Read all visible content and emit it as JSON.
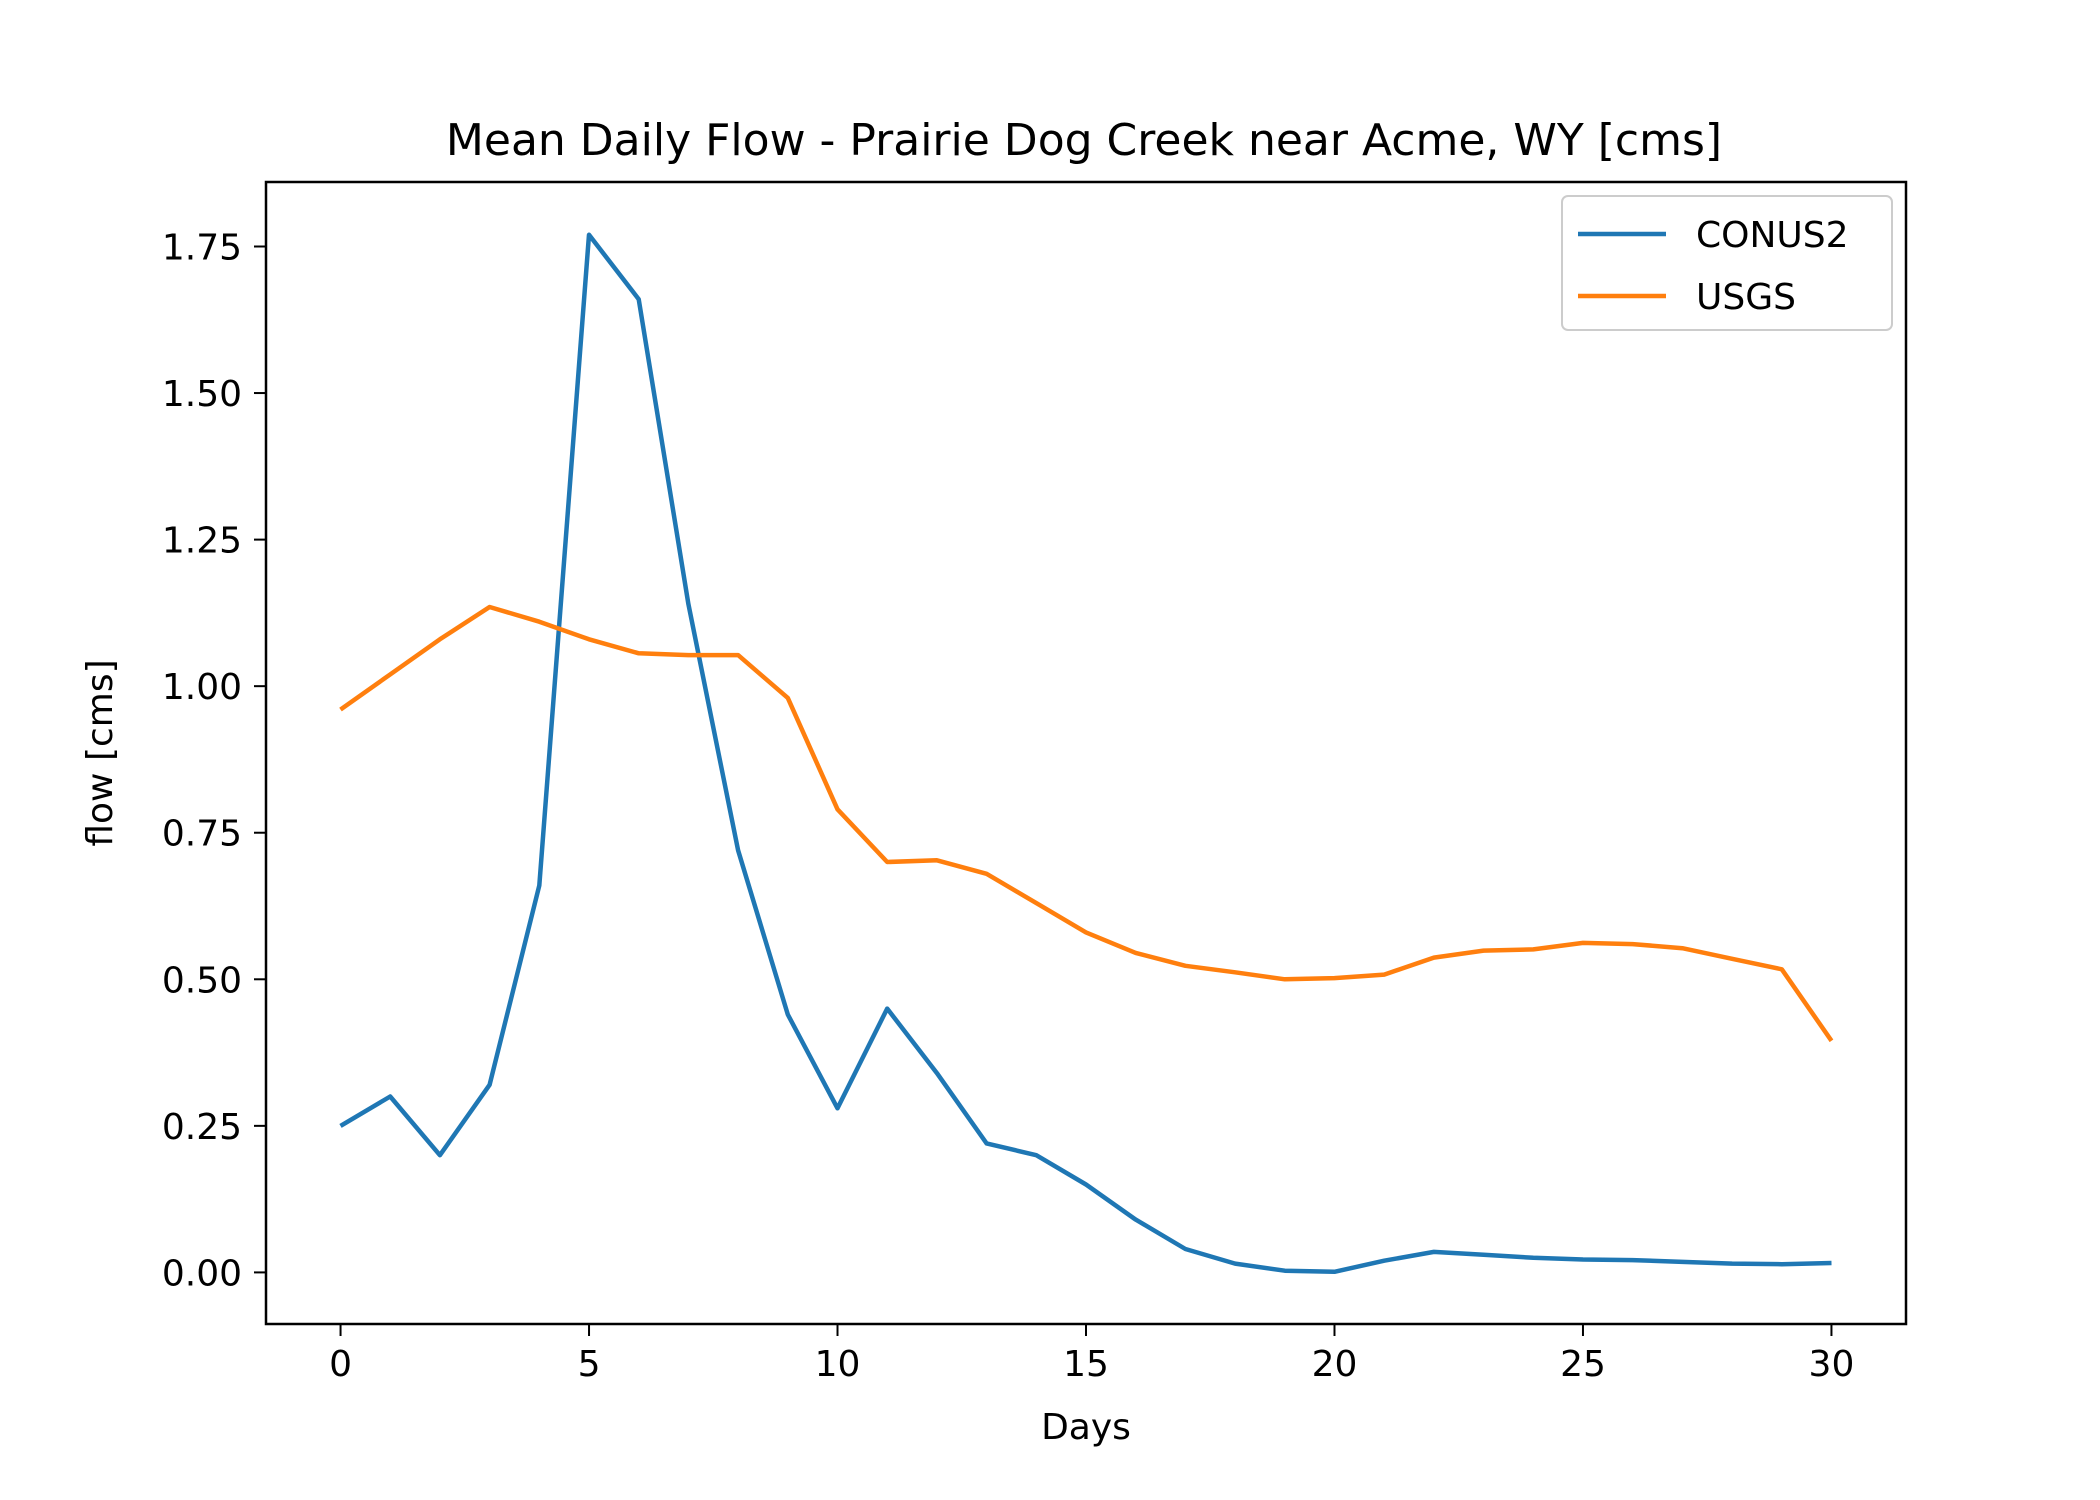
{
  "chart_data": {
    "type": "line",
    "title": "Mean Daily Flow - Prairie Dog Creek near Acme, WY [cms]",
    "xlabel": "Days",
    "ylabel": "flow [cms]",
    "xlim": [
      -1.5,
      31.5
    ],
    "ylim": [
      -0.088,
      1.86
    ],
    "xticks": [
      0,
      5,
      10,
      15,
      20,
      25,
      30
    ],
    "xtick_labels": [
      "0",
      "5",
      "10",
      "15",
      "20",
      "25",
      "30"
    ],
    "yticks": [
      0.0,
      0.25,
      0.5,
      0.75,
      1.0,
      1.25,
      1.5,
      1.75
    ],
    "ytick_labels": [
      "0.00",
      "0.25",
      "0.50",
      "0.75",
      "1.00",
      "1.25",
      "1.50",
      "1.75"
    ],
    "grid": false,
    "legend": "top-right",
    "x": [
      0,
      1,
      2,
      3,
      4,
      5,
      6,
      7,
      8,
      9,
      10,
      11,
      12,
      13,
      14,
      15,
      16,
      17,
      18,
      19,
      20,
      21,
      22,
      23,
      24,
      25,
      26,
      27,
      28,
      29,
      30
    ],
    "series": [
      {
        "name": "CONUS2",
        "color": "#1f77b4",
        "values": [
          0.25,
          0.3,
          0.2,
          0.32,
          0.66,
          1.77,
          1.66,
          1.14,
          0.72,
          0.44,
          0.28,
          0.45,
          0.34,
          0.22,
          0.2,
          0.15,
          0.09,
          0.04,
          0.015,
          0.003,
          0.001,
          0.02,
          0.035,
          0.03,
          0.025,
          0.022,
          0.021,
          0.018,
          0.015,
          0.014,
          0.016
        ]
      },
      {
        "name": "USGS",
        "color": "#ff7f0e",
        "values": [
          0.96,
          1.02,
          1.08,
          1.135,
          1.11,
          1.08,
          1.056,
          1.053,
          1.053,
          0.98,
          0.79,
          0.7,
          0.703,
          0.68,
          0.63,
          0.58,
          0.545,
          0.523,
          0.512,
          0.5,
          0.502,
          0.508,
          0.537,
          0.549,
          0.551,
          0.562,
          0.56,
          0.553,
          0.535,
          0.517,
          0.395
        ]
      }
    ]
  }
}
